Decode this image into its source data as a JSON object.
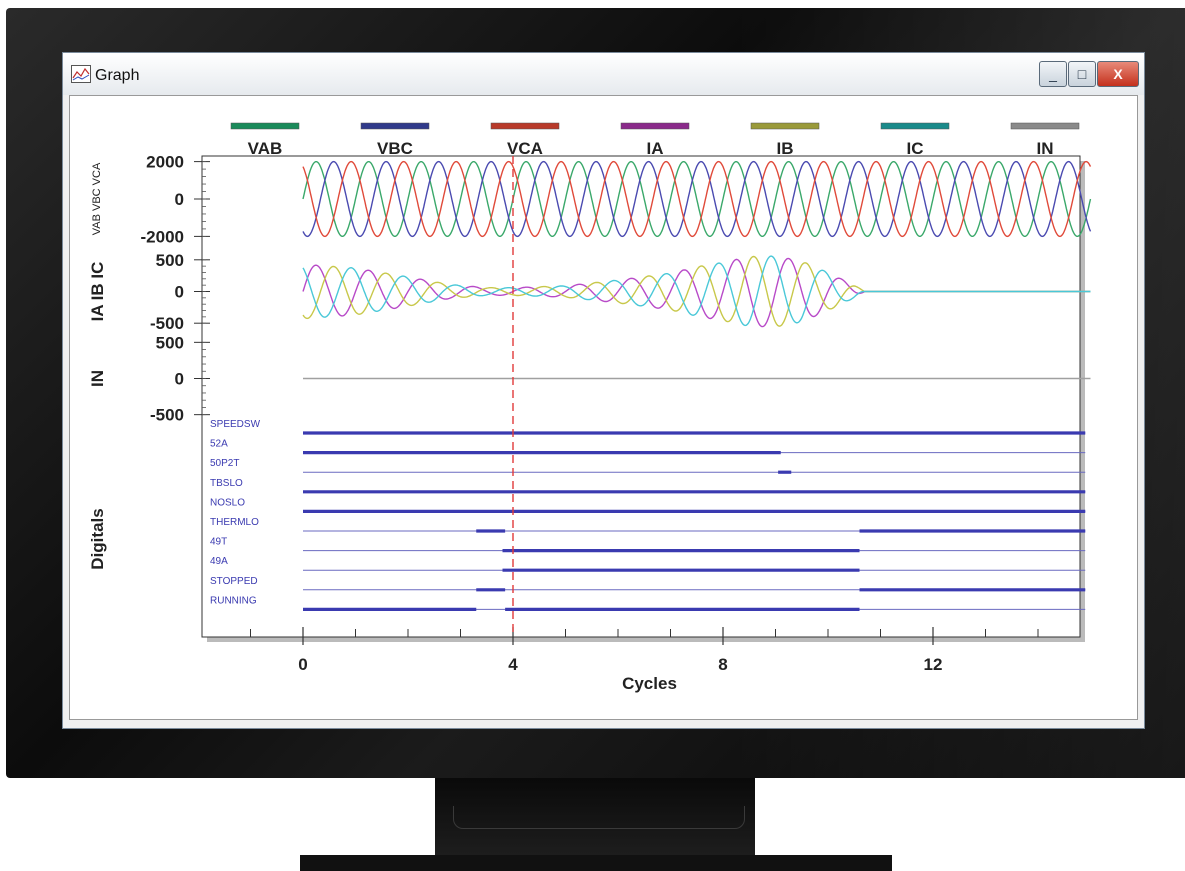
{
  "window": {
    "title": "Graph",
    "icon": "graph-icon",
    "controls": {
      "minimize": "_",
      "maximize": "□",
      "close": "X"
    }
  },
  "chart_data": {
    "type": "line",
    "xlabel": "Cycles",
    "xlim": [
      -1.5,
      15.6
    ],
    "xticks": [
      0,
      4,
      8,
      12
    ],
    "cursor_x": 4,
    "legend": [
      {
        "name": "VAB",
        "color": "#1a8a5a"
      },
      {
        "name": "VBC",
        "color": "#303a8a"
      },
      {
        "name": "VCA",
        "color": "#b83a2a"
      },
      {
        "name": "IA",
        "color": "#8a2a8a"
      },
      {
        "name": "IB",
        "color": "#9a9a3a"
      },
      {
        "name": "IC",
        "color": "#1a8a8a"
      },
      {
        "name": "IN",
        "color": "#8a8a8a"
      }
    ],
    "panels": [
      {
        "ylabel": "VAB VBC VCA",
        "ylim": [
          -2300,
          2300
        ],
        "yticks": [
          2000,
          0,
          -2000
        ],
        "series": [
          {
            "name": "VAB",
            "color": "#3aa86a",
            "amplitude": 2000,
            "phase_deg": 0,
            "x_start": 0,
            "x_end": 15
          },
          {
            "name": "VBC",
            "color": "#4a4ab0",
            "amplitude": 2000,
            "phase_deg": -120,
            "x_start": 0,
            "x_end": 15
          },
          {
            "name": "VCA",
            "color": "#e04a3a",
            "amplitude": 2000,
            "phase_deg": 120,
            "x_start": 0,
            "x_end": 15
          }
        ]
      },
      {
        "ylabel": "IA IB IC",
        "ylim": [
          -560,
          560
        ],
        "yticks": [
          500,
          0,
          -500
        ],
        "envelope": {
          "x": [
            0,
            1,
            2,
            2.8,
            3.5,
            4,
            5,
            6,
            7,
            7.5,
            8,
            8.5,
            9,
            9.5,
            10,
            10.5,
            10.7
          ],
          "amplitude": [
            430,
            370,
            230,
            110,
            60,
            60,
            90,
            180,
            290,
            390,
            460,
            550,
            560,
            480,
            300,
            100,
            0
          ]
        },
        "series": [
          {
            "name": "IA",
            "color": "#b84ac8",
            "phase_deg": 0
          },
          {
            "name": "IB",
            "color": "#c8c84a",
            "phase_deg": -120
          },
          {
            "name": "IC",
            "color": "#4ac8d8",
            "phase_deg": 120
          }
        ]
      },
      {
        "ylabel": "IN",
        "ylim": [
          -560,
          560
        ],
        "yticks": [
          500,
          0,
          -500
        ],
        "series": [
          {
            "name": "IN",
            "color": "#a0a0a0",
            "constant": 0
          }
        ]
      }
    ],
    "digitals": {
      "ylabel": "Digitals",
      "x_end": 14.9,
      "channels": [
        {
          "name": "SPEEDSW",
          "high": [
            [
              0,
              14.9
            ]
          ]
        },
        {
          "name": "52A",
          "high": [
            [
              0,
              9.1
            ]
          ]
        },
        {
          "name": "50P2T",
          "high": [
            [
              9.05,
              9.3
            ]
          ]
        },
        {
          "name": "TBSLO",
          "high": [
            [
              0,
              14.9
            ]
          ]
        },
        {
          "name": "NOSLO",
          "high": [
            [
              0,
              14.9
            ]
          ]
        },
        {
          "name": "THERMLO",
          "high": [
            [
              3.3,
              3.85
            ],
            [
              10.6,
              14.9
            ]
          ]
        },
        {
          "name": "49T",
          "high": [
            [
              3.8,
              10.6
            ]
          ]
        },
        {
          "name": "49A",
          "high": [
            [
              3.8,
              10.6
            ]
          ]
        },
        {
          "name": "STOPPED",
          "high": [
            [
              3.3,
              3.85
            ],
            [
              10.6,
              14.9
            ]
          ]
        },
        {
          "name": "RUNNING",
          "high": [
            [
              0,
              3.3
            ],
            [
              3.85,
              10.6
            ]
          ]
        }
      ]
    }
  }
}
